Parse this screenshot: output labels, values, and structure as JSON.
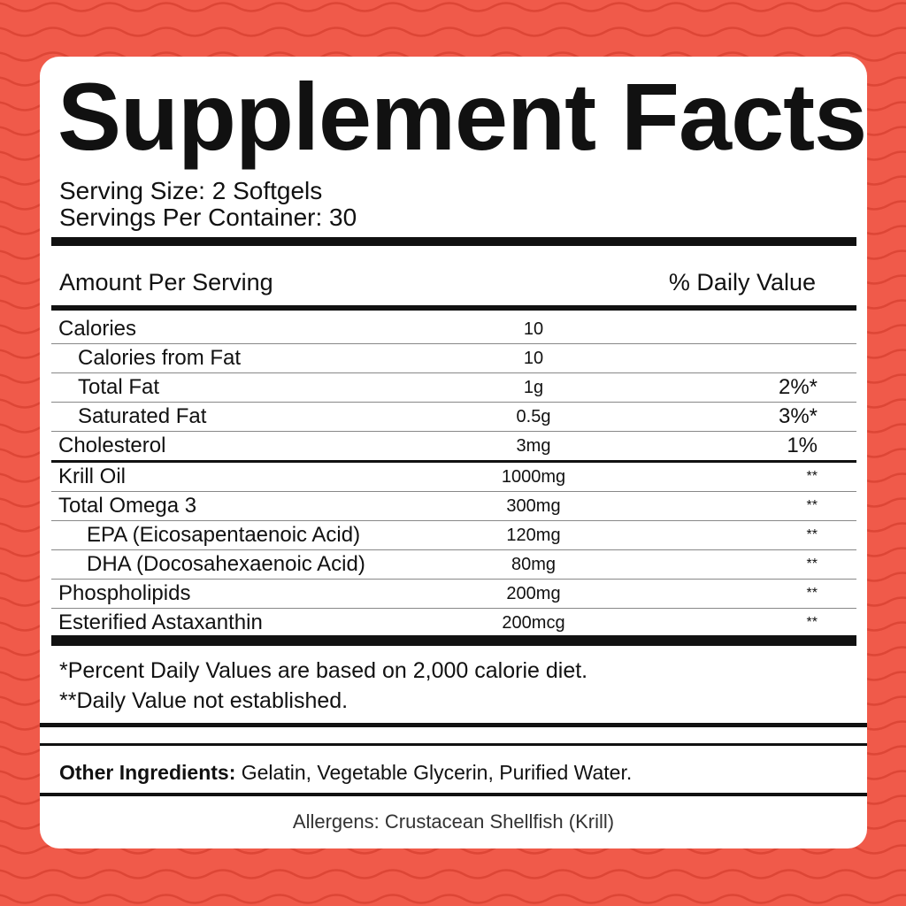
{
  "colors": {
    "background": "#f05a4a",
    "wave": "#dd4636",
    "card": "#ffffff",
    "text": "#111111"
  },
  "title": "Supplement Facts",
  "serving_size": "Serving Size: 2 Softgels",
  "servings_per_container": "Servings Per Container: 30",
  "header": {
    "amount": "Amount Per Serving",
    "daily_value": "% Daily Value"
  },
  "rows": [
    {
      "name": "Calories",
      "amount": "10",
      "dv": "",
      "indent": 0
    },
    {
      "name": "Calories from Fat",
      "amount": "10",
      "dv": "",
      "indent": 1
    },
    {
      "name": "Total Fat",
      "amount": "1g",
      "dv": "2%*",
      "indent": 1
    },
    {
      "name": "Saturated Fat",
      "amount": "0.5g",
      "dv": "3%*",
      "indent": 1
    },
    {
      "name": "Cholesterol",
      "amount": "3mg",
      "dv": "1%",
      "indent": 0
    },
    {
      "name": "Krill Oil",
      "amount": "1000mg",
      "dv": "**",
      "indent": 0
    },
    {
      "name": "Total Omega 3",
      "amount": "300mg",
      "dv": "**",
      "indent": 0
    },
    {
      "name": "EPA (Eicosapentaenoic Acid)",
      "amount": "120mg",
      "dv": "**",
      "indent": 2
    },
    {
      "name": "DHA (Docosahexaenoic Acid)",
      "amount": "80mg",
      "dv": "**",
      "indent": 2
    },
    {
      "name": "Phospholipids",
      "amount": "200mg",
      "dv": "**",
      "indent": 0
    },
    {
      "name": "Esterified Astaxanthin",
      "amount": "200mcg",
      "dv": "**",
      "indent": 0
    }
  ],
  "footnotes": [
    "*Percent Daily Values are based on 2,000 calorie diet.",
    "**Daily Value not established."
  ],
  "other_ingredients": {
    "label": "Other Ingredients:",
    "value": " Gelatin, Vegetable Glycerin, Purified Water."
  },
  "allergens": "Allergens: Crustacean Shellfish (Krill)"
}
